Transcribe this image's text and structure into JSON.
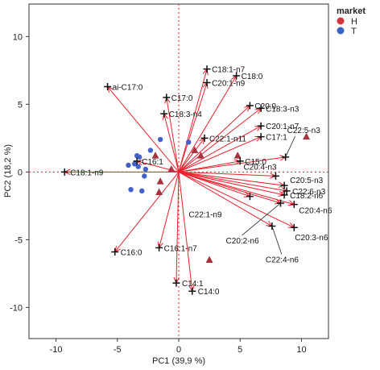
{
  "chart_data": {
    "type": "scatter",
    "subtype": "pca-biplot",
    "title": "",
    "xlabel": "PC1 (39,9 %)",
    "ylabel": "PC2 (18,2 %)",
    "xlim": [
      -12.2,
      12.2
    ],
    "ylim": [
      -12.3,
      12.4
    ],
    "xticks": [
      -10,
      -5,
      0,
      5,
      10
    ],
    "yticks": [
      -10,
      -5,
      0,
      5,
      10
    ],
    "grid": false,
    "zero_lines": "dotted red",
    "legend": {
      "title": "market",
      "position": "top-right",
      "entries": [
        {
          "label": "H",
          "color": "#d2333c"
        },
        {
          "label": "T",
          "color": "#3a63c4"
        }
      ]
    },
    "colors": {
      "arrows": "#e8202c",
      "H": "#a8323e",
      "T": "#4461c8",
      "zero_lines": "#e02020",
      "loading_marker": "#111111"
    },
    "loadings": [
      {
        "label": "C18:1-n7",
        "x": 2.3,
        "y": 7.6
      },
      {
        "label": "C18:0",
        "x": 4.7,
        "y": 7.1
      },
      {
        "label": "C20:1-n9",
        "x": 2.3,
        "y": 6.6
      },
      {
        "label": "ai-C17:0",
        "x": -5.8,
        "y": 6.3
      },
      {
        "label": "C17:0",
        "x": -1.0,
        "y": 5.5
      },
      {
        "label": "C20:0",
        "x": 5.8,
        "y": 4.9
      },
      {
        "label": "C18:3-n3",
        "x": 6.7,
        "y": 4.7
      },
      {
        "label": "C18:3-n4",
        "x": -1.2,
        "y": 4.3
      },
      {
        "label": "C20:1-n7",
        "x": 6.7,
        "y": 3.4
      },
      {
        "label": "C22:1-n11",
        "x": 2.1,
        "y": 2.5
      },
      {
        "label": "C17:1",
        "x": 6.7,
        "y": 2.6
      },
      {
        "label": "C22:5-n3",
        "x": 8.7,
        "y": 1.1
      },
      {
        "label": "C15:0",
        "x": 5.0,
        "y": 0.8
      },
      {
        "label": "C16:1",
        "x": -3.4,
        "y": 0.8
      },
      {
        "label": "C18:1-n9",
        "x": -9.3,
        "y": 0.0
      },
      {
        "label": "C20:4-n3",
        "x": 7.9,
        "y": -0.3
      },
      {
        "label": "C20:5-n3",
        "x": 8.6,
        "y": -1.0
      },
      {
        "label": "C22:6-n3",
        "x": 8.8,
        "y": -1.4
      },
      {
        "label": "C18:2-n6",
        "x": 8.6,
        "y": -1.7
      },
      {
        "label": "C22:1-n9",
        "x": 5.8,
        "y": -1.8
      },
      {
        "label": "C20:4-n6",
        "x": 9.4,
        "y": -2.4
      },
      {
        "label": "C20:2-n6",
        "x": 8.3,
        "y": -2.3
      },
      {
        "label": "C20:3-n6",
        "x": 9.4,
        "y": -4.1
      },
      {
        "label": "C22:4-n6",
        "x": 7.6,
        "y": -4.0
      },
      {
        "label": "C16:1-n7",
        "x": -1.6,
        "y": -5.6
      },
      {
        "label": "C16:0",
        "x": -5.2,
        "y": -5.9
      },
      {
        "label": "C14:1",
        "x": -0.2,
        "y": -8.2
      },
      {
        "label": "C14:0",
        "x": 1.1,
        "y": -8.8
      }
    ],
    "series": [
      {
        "name": "H",
        "marker": "triangle",
        "points": [
          {
            "x": 10.4,
            "y": 2.6
          },
          {
            "x": -1.9,
            "y": 1.2
          },
          {
            "x": 1.3,
            "y": 1.6
          },
          {
            "x": 1.8,
            "y": 1.2
          },
          {
            "x": 4.8,
            "y": 1.2
          },
          {
            "x": -1.5,
            "y": -0.7
          },
          {
            "x": -1.6,
            "y": -1.5
          },
          {
            "x": 2.5,
            "y": -6.5
          },
          {
            "x": -0.6,
            "y": 0.2
          }
        ]
      },
      {
        "name": "T",
        "marker": "circle",
        "points": [
          {
            "x": -1.5,
            "y": 2.4
          },
          {
            "x": -2.3,
            "y": 1.6
          },
          {
            "x": 0.8,
            "y": 2.2
          },
          {
            "x": -3.4,
            "y": 1.2
          },
          {
            "x": -3.2,
            "y": 1.1
          },
          {
            "x": -3.6,
            "y": 0.6
          },
          {
            "x": -3.3,
            "y": 0.4
          },
          {
            "x": -4.1,
            "y": 0.5
          },
          {
            "x": -2.7,
            "y": 0.2
          },
          {
            "x": -2.8,
            "y": -0.3
          },
          {
            "x": -3.9,
            "y": -1.3
          },
          {
            "x": -3.0,
            "y": -1.4
          }
        ]
      }
    ]
  }
}
